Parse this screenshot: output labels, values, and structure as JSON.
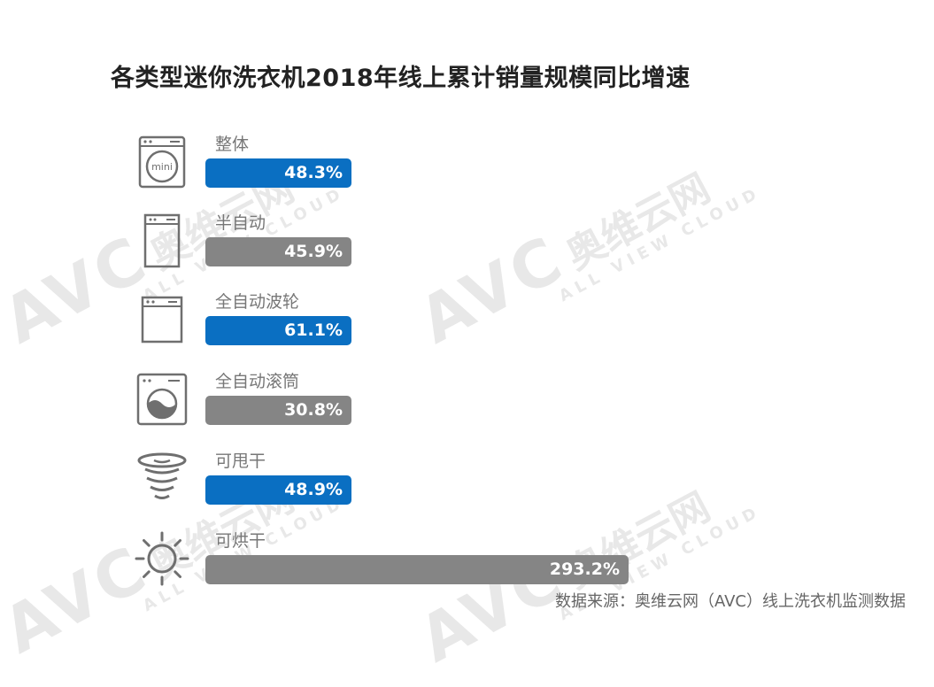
{
  "title": "各类型迷你洗衣机2018年线上累计销量规模同比增速",
  "source": "数据来源：奥维云网（AVC）线上洗衣机监测数据",
  "watermark": {
    "brand": "AVC",
    "cn": "奥维云网",
    "en": "ALL VIEW CLOUD"
  },
  "colors": {
    "blue": "#0a6fc2",
    "gray": "#858585"
  },
  "chart_data": {
    "type": "bar",
    "orientation": "horizontal",
    "title": "各类型迷你洗衣机2018年线上累计销量规模同比增速",
    "categories": [
      "整体",
      "半自动",
      "全自动波轮",
      "全自动滚筒",
      "可甩干",
      "可烘干"
    ],
    "values": [
      48.3,
      45.9,
      61.1,
      30.8,
      48.9,
      293.2
    ],
    "value_labels": [
      "48.3%",
      "45.9%",
      "61.1%",
      "30.8%",
      "48.9%",
      "293.2%"
    ],
    "bar_colors": [
      "#0a6fc2",
      "#858585",
      "#0a6fc2",
      "#858585",
      "#0a6fc2",
      "#858585"
    ],
    "icons": [
      "mini-washer-icon",
      "semi-auto-washer-icon",
      "top-load-washer-icon",
      "front-load-drum-icon",
      "spin-dry-icon",
      "sun-dryer-icon"
    ],
    "icon_text": "mini",
    "unit": "%"
  }
}
